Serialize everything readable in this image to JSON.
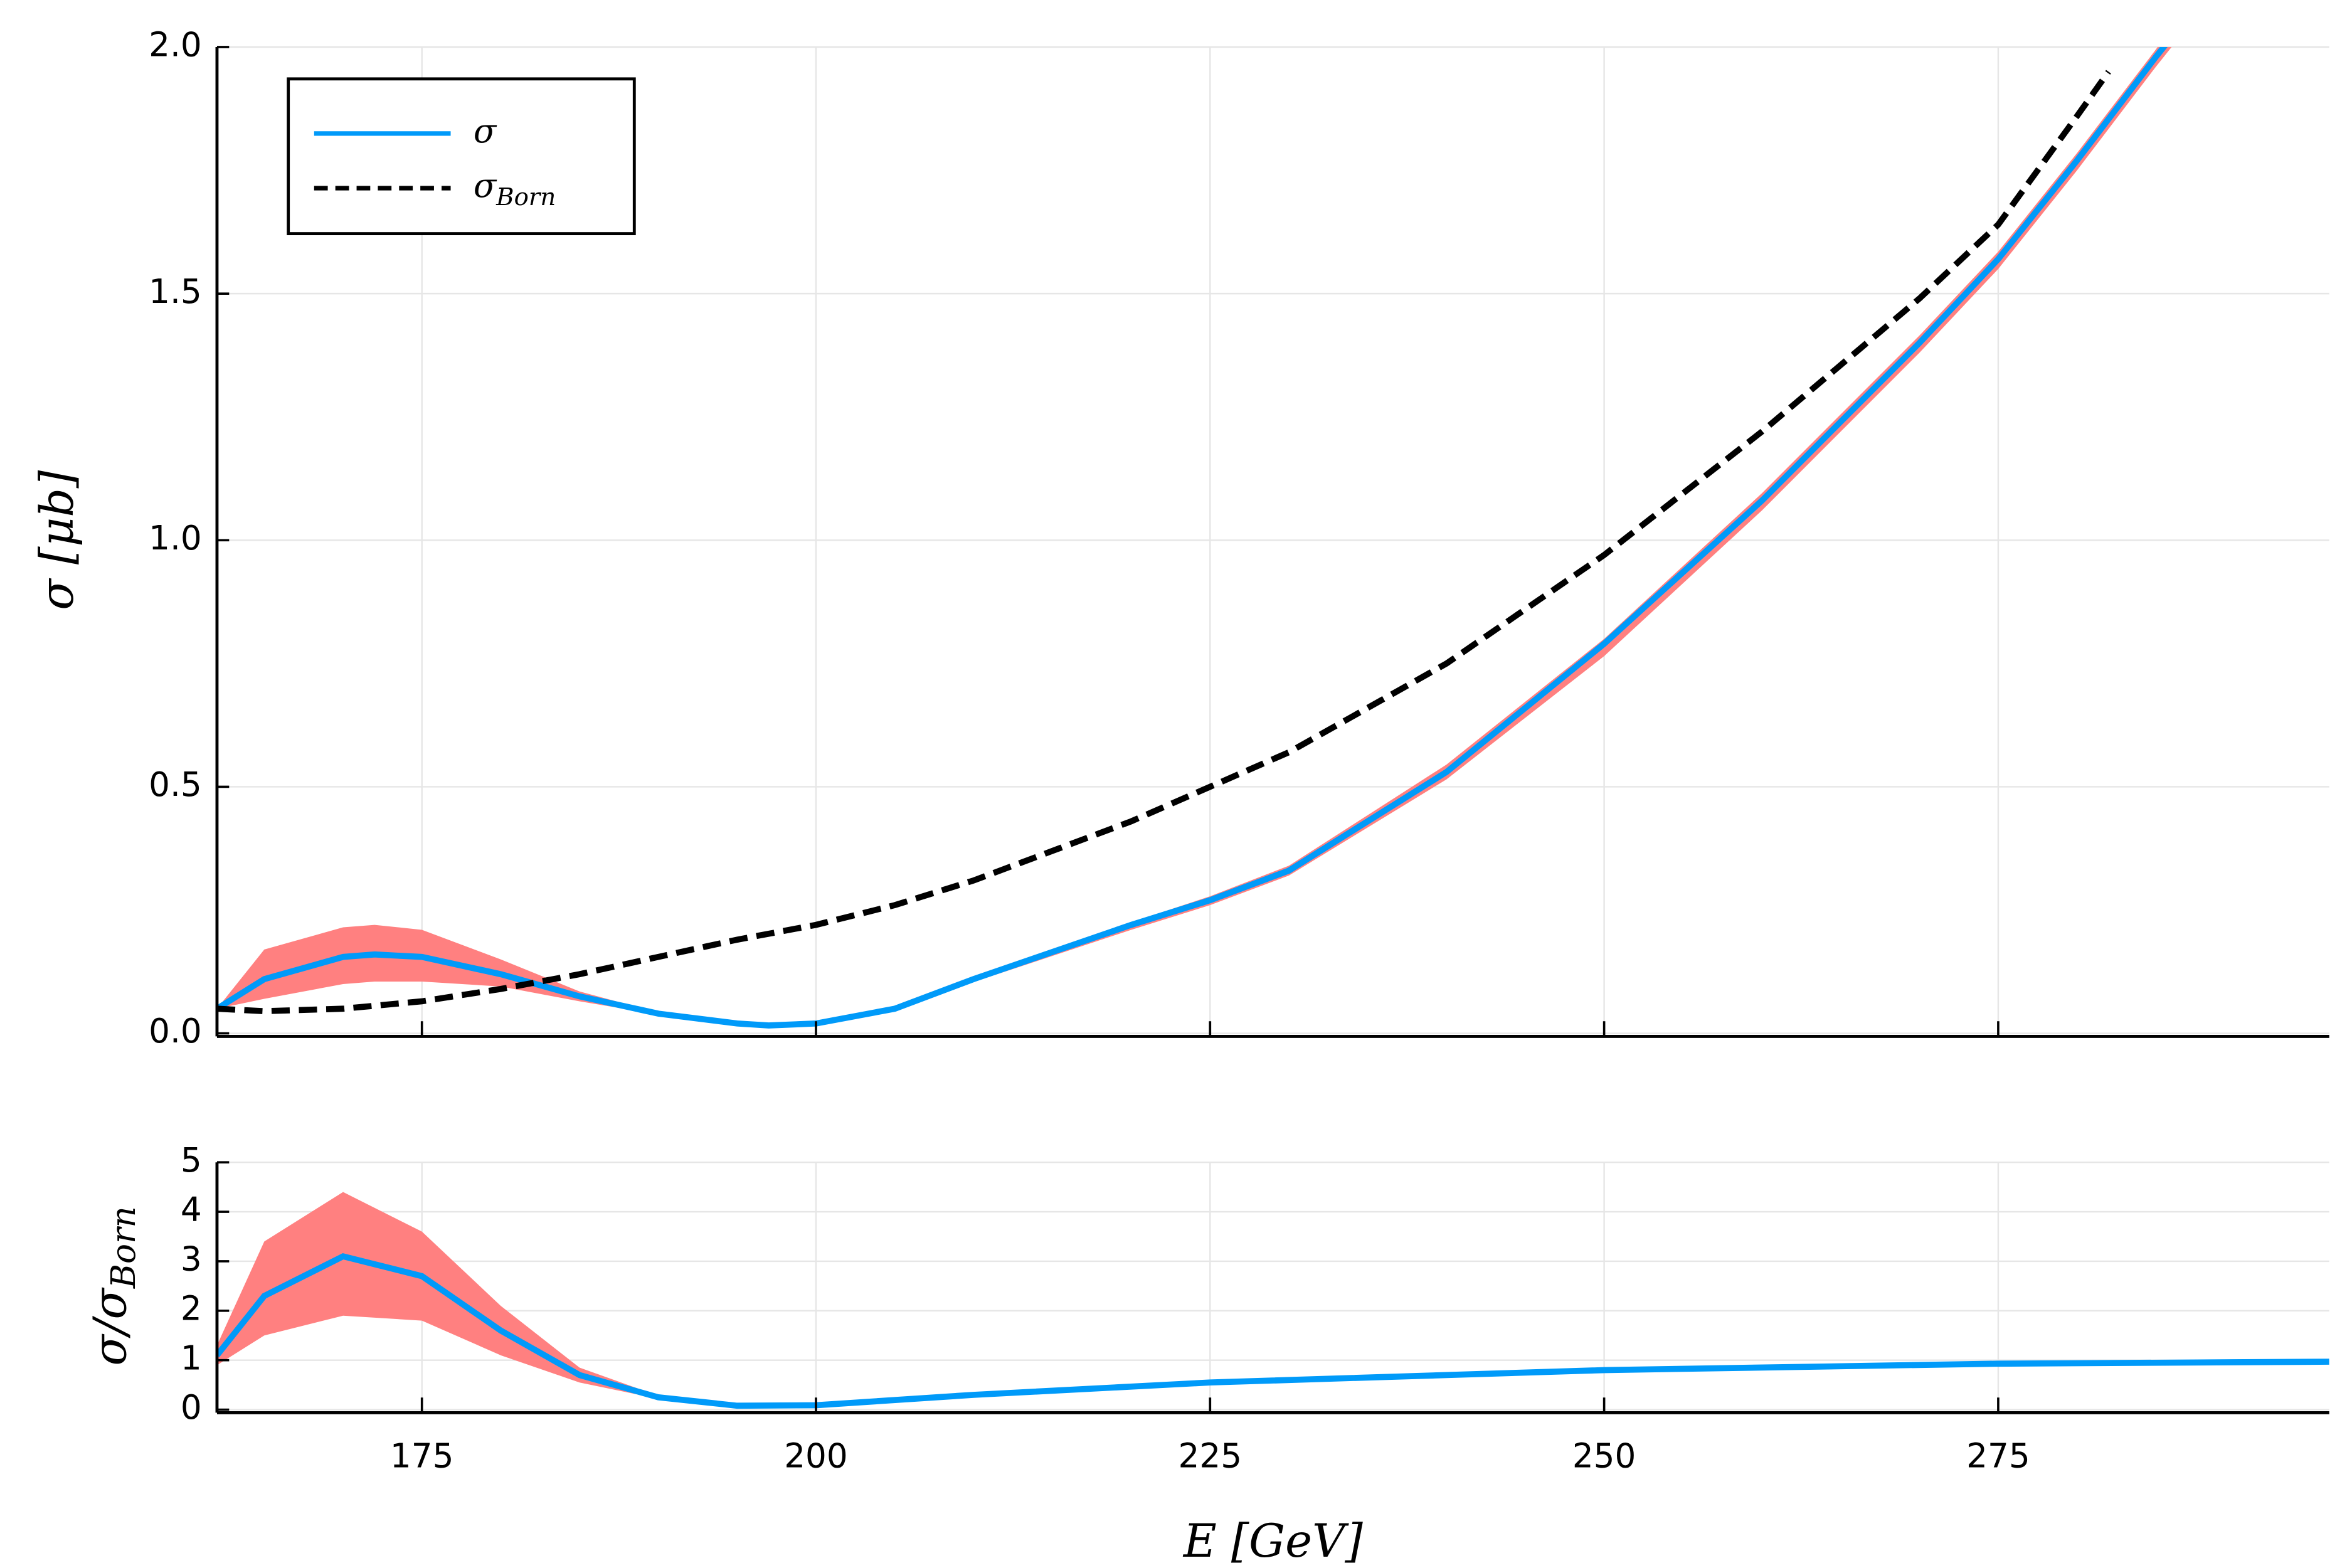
{
  "chart_data": [
    {
      "type": "line",
      "ylabel": "σ  [μb]",
      "xlim": [
        162,
        296
      ],
      "ylim": [
        0,
        2
      ],
      "yticks": [
        {
          "value": 0,
          "label": "0.0"
        },
        0.5,
        {
          "value": 1,
          "label": "1.0"
        },
        1.5,
        {
          "value": 2,
          "label": "2.0"
        }
      ],
      "grid": true,
      "legend": "top left",
      "series": [
        {
          "name": "σ",
          "color": "#009af9",
          "style": "solid",
          "band_color": "#ff8080",
          "x": [
            162,
            165,
            170,
            172,
            175,
            180,
            185,
            190,
            195,
            197,
            200,
            205,
            210,
            220,
            225,
            230,
            240,
            250,
            260,
            270,
            275,
            280,
            285,
            286
          ],
          "values": [
            0.05,
            0.11,
            0.155,
            0.16,
            0.155,
            0.12,
            0.075,
            0.04,
            0.02,
            0.016,
            0.02,
            0.05,
            0.11,
            0.22,
            0.27,
            0.33,
            0.53,
            0.79,
            1.08,
            1.4,
            1.57,
            1.77,
            1.98,
            2.02
          ],
          "band_upper": [
            0.05,
            0.17,
            0.215,
            0.22,
            0.21,
            0.15,
            0.085,
            0.042,
            0.021,
            0.017,
            0.021,
            0.052,
            0.114,
            0.225,
            0.278,
            0.34,
            0.545,
            0.8,
            1.095,
            1.415,
            1.585,
            1.785,
            1.995,
            2.04
          ],
          "band_lower": [
            0.05,
            0.07,
            0.1,
            0.105,
            0.105,
            0.095,
            0.065,
            0.038,
            0.019,
            0.015,
            0.019,
            0.047,
            0.104,
            0.21,
            0.26,
            0.32,
            0.515,
            0.765,
            1.06,
            1.38,
            1.55,
            1.75,
            1.96,
            2.0
          ]
        },
        {
          "name": "σ",
          "subscript": "Born",
          "color": "#000000",
          "style": "dashed",
          "x": [
            162,
            165,
            170,
            175,
            180,
            185,
            190,
            195,
            200,
            205,
            210,
            215,
            220,
            225,
            230,
            240,
            250,
            260,
            270,
            275,
            280,
            282
          ],
          "values": [
            0.05,
            0.045,
            0.05,
            0.065,
            0.09,
            0.12,
            0.155,
            0.19,
            0.22,
            0.26,
            0.31,
            0.37,
            0.43,
            0.5,
            0.57,
            0.75,
            0.97,
            1.22,
            1.49,
            1.64,
            1.86,
            1.95
          ]
        }
      ]
    },
    {
      "type": "line",
      "xlabel": "E  [GeV]",
      "ylabel": "σ/σ",
      "ylabel_subscript": "Born",
      "xlim": [
        162,
        296
      ],
      "ylim": [
        0,
        5
      ],
      "xticks": [
        175,
        200,
        225,
        250,
        275
      ],
      "yticks": [
        0,
        1,
        2,
        3,
        4,
        5
      ],
      "grid": true,
      "series": [
        {
          "color": "#009af9",
          "style": "solid",
          "band_color": "#ff8080",
          "x": [
            162,
            165,
            170,
            175,
            180,
            185,
            190,
            195,
            200,
            210,
            225,
            250,
            275,
            296
          ],
          "values": [
            1.1,
            2.3,
            3.1,
            2.7,
            1.6,
            0.7,
            0.25,
            0.08,
            0.09,
            0.3,
            0.55,
            0.8,
            0.93,
            0.97
          ],
          "band_upper": [
            1.3,
            3.4,
            4.4,
            3.6,
            2.1,
            0.85,
            0.28,
            0.09,
            0.1,
            0.31,
            0.56,
            0.81,
            0.94,
            0.98
          ],
          "band_lower": [
            0.9,
            1.5,
            1.9,
            1.8,
            1.1,
            0.55,
            0.22,
            0.07,
            0.08,
            0.29,
            0.54,
            0.79,
            0.92,
            0.96
          ]
        }
      ]
    }
  ]
}
